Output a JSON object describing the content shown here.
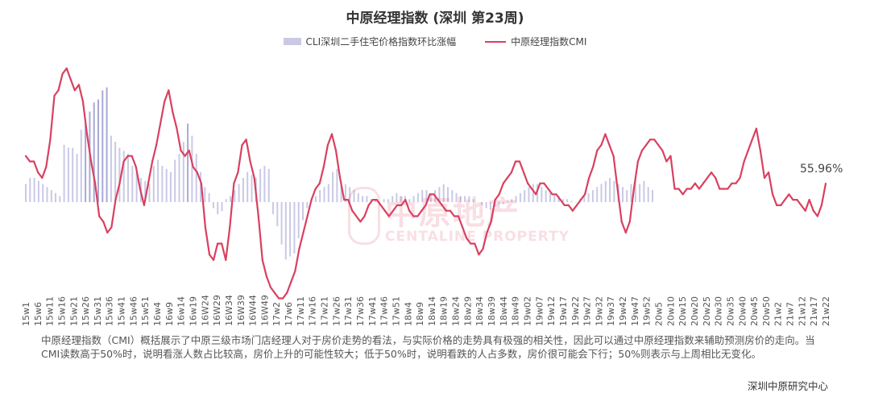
{
  "page": {
    "title": "中原经理指数 (深圳 第23周)",
    "note": "中原经理指数（CMI）概括展示了中原三级市场门店经理人对于房价走势的看法，与实际价格的走势具有极强的相关性，因此可以通过中原经理指数来辅助预测房价的走向。当CMI读数高于50%时，说明看涨人数占比较高，房价上升的可能性较大；低于50%时，说明看跌的人占多数，房价很可能会下行；50%则表示与上周相比无变化。",
    "source": "深圳中原研究中心",
    "watermark_cn": "中原地产",
    "watermark_en": "CENTALINE PROPERTY"
  },
  "chart_data": {
    "type": "bar+line",
    "title": "中原经理指数 (深圳 第23周)",
    "legend_position": "top-center",
    "grid": false,
    "tick_labels": [
      "15w1",
      "15w6",
      "15w11",
      "15w16",
      "15w21",
      "15w26",
      "15w31",
      "15w36",
      "15w41",
      "15w46",
      "15w51",
      "16w4",
      "16w9",
      "16w14",
      "16w19",
      "16W24",
      "16W29",
      "16W34",
      "16W39",
      "16W44",
      "16W49",
      "17w2",
      "17w6",
      "17w11",
      "17w16",
      "17w21",
      "17w26",
      "17w31",
      "17w36",
      "17w41",
      "17w46",
      "17w51",
      "18w4",
      "18w9",
      "18w14",
      "18w19",
      "18w24",
      "18w29",
      "18w34",
      "18w39",
      "18w44",
      "18w49",
      "19w02",
      "19w07",
      "19w12",
      "19w17",
      "19w22",
      "19w27",
      "19w32",
      "19w37",
      "19w42",
      "19w47",
      "19w52",
      "20w5",
      "20w10",
      "20w15",
      "20w20",
      "20w25",
      "20w30",
      "20w35",
      "20w40",
      "20w45",
      "20w50",
      "21w2",
      "21w7",
      "21w12",
      "21w17",
      "21w22"
    ],
    "last_point_label": "55.96%",
    "series": [
      {
        "name": "CLI深圳二手住宅价格指数环比涨幅",
        "kind": "bar",
        "color": "#c9c9e6",
        "highlight_color": "#a9a9d6",
        "values": [
          0.3,
          0.4,
          0.4,
          0.35,
          0.3,
          0.25,
          0.2,
          0.15,
          0.1,
          0.95,
          0.9,
          0.9,
          0.8,
          1.2,
          1.3,
          1.5,
          1.65,
          1.7,
          1.85,
          1.9,
          1.1,
          1.0,
          0.9,
          0.85,
          0.8,
          0.6,
          0.5,
          0.4,
          0.35,
          0.3,
          0.6,
          0.7,
          0.6,
          0.55,
          0.5,
          0.7,
          0.8,
          1.0,
          1.3,
          1.1,
          0.8,
          0.5,
          0.25,
          0.15,
          -0.1,
          -0.2,
          -0.15,
          0.05,
          0.1,
          0.2,
          0.3,
          0.4,
          0.5,
          0.45,
          0.4,
          0.55,
          0.6,
          0.55,
          -0.2,
          -0.4,
          -0.7,
          -0.95,
          -0.9,
          -0.85,
          -0.6,
          -0.3,
          -0.1,
          0.05,
          0.1,
          0.2,
          0.25,
          0.3,
          0.5,
          0.55,
          0.35,
          0.3,
          0.25,
          0.2,
          0.15,
          0.1,
          0.1,
          0.05,
          0.05,
          0.0,
          0.05,
          0.05,
          0.1,
          0.15,
          0.1,
          0.1,
          0.05,
          0.1,
          0.15,
          0.2,
          0.2,
          0.15,
          0.2,
          0.25,
          0.3,
          0.25,
          0.2,
          0.15,
          0.1,
          0.1,
          0.1,
          0.05,
          0.0,
          -0.05,
          -0.1,
          -0.12,
          -0.08,
          -0.05,
          -0.03,
          0.02,
          0.05,
          0.1,
          0.15,
          0.2,
          0.25,
          0.3,
          0.3,
          0.25,
          0.2,
          0.15,
          0.12,
          0.1,
          0.05,
          0.05,
          0.02,
          0.0,
          0.05,
          0.1,
          0.15,
          0.2,
          0.25,
          0.3,
          0.35,
          0.4,
          0.35,
          0.3,
          0.25,
          0.2,
          0.3,
          0.4,
          0.3,
          0.35,
          0.25,
          0.2
        ]
      },
      {
        "name": "中原经理指数CMI",
        "kind": "line",
        "color": "#d9405f",
        "values": [
          61,
          60,
          60,
          58,
          57,
          59,
          64,
          72,
          73,
          76,
          77,
          75,
          73,
          74,
          71,
          65,
          60,
          56,
          50,
          49,
          47,
          48,
          53,
          56,
          60,
          61,
          61,
          59,
          55,
          52,
          56,
          60,
          63,
          67,
          71,
          73,
          69,
          66,
          62,
          61,
          62,
          59,
          58,
          56,
          48,
          43,
          42,
          45,
          45,
          42,
          48,
          56,
          58,
          63,
          64,
          60,
          57,
          50,
          42,
          39,
          37,
          36,
          35,
          35,
          36,
          38,
          40,
          44,
          47,
          50,
          53,
          55,
          56,
          59,
          63,
          65,
          62,
          57,
          53,
          53,
          51,
          50,
          49,
          50,
          52,
          53,
          53,
          52,
          51,
          50,
          51,
          52,
          52,
          53,
          51,
          50,
          50,
          51,
          52,
          54,
          54,
          53,
          52,
          51,
          51,
          50,
          50,
          48,
          46,
          45,
          45,
          43,
          44,
          47,
          49,
          53,
          54,
          56,
          57,
          58,
          60,
          60,
          58,
          56,
          55,
          54,
          56,
          56,
          55,
          54,
          54,
          53,
          52,
          52,
          51,
          52,
          53,
          54,
          57,
          59,
          62,
          63,
          65,
          63,
          61,
          55,
          49,
          47,
          49,
          55,
          60,
          62,
          63,
          64,
          64,
          63,
          62,
          60,
          61,
          55,
          55,
          54,
          55,
          55,
          56,
          55,
          56,
          57,
          58,
          57,
          55,
          55,
          55,
          56,
          56,
          57,
          60,
          62,
          64,
          66,
          62,
          57,
          58,
          54,
          52,
          52,
          53,
          54,
          53,
          53,
          52,
          51,
          53,
          51,
          50,
          52,
          55.96
        ]
      }
    ]
  }
}
